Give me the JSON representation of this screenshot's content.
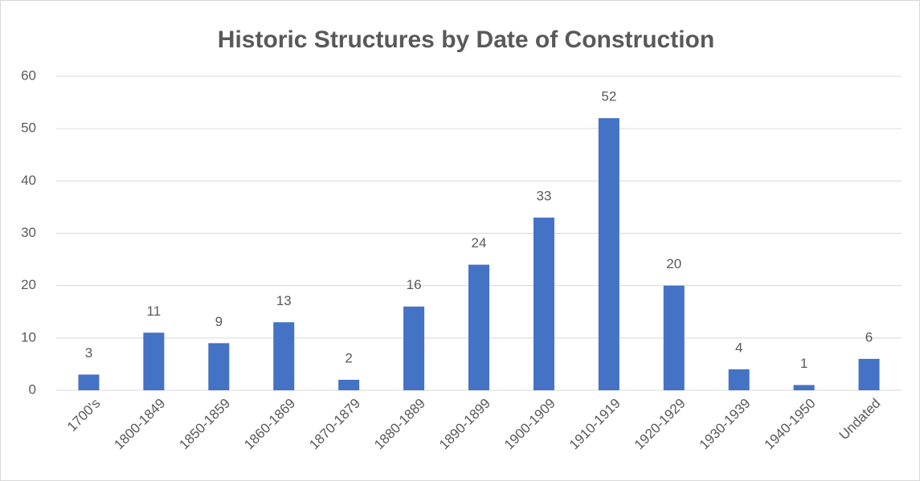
{
  "chart_data": {
    "type": "bar",
    "title": "Historic Structures by Date of Construction",
    "categories": [
      "1700's",
      "1800-1849",
      "1850-1859",
      "1860-1869",
      "1870-1879",
      "1880-1889",
      "1890-1899",
      "1900-1909",
      "1910-1919",
      "1920-1929",
      "1930-1939",
      "1940-1950",
      "Undated"
    ],
    "values": [
      3,
      11,
      9,
      13,
      2,
      16,
      24,
      33,
      52,
      20,
      4,
      1,
      6
    ],
    "color": "#4472c4",
    "ylim": [
      0,
      60
    ],
    "yticks": [
      0,
      10,
      20,
      30,
      40,
      50,
      60
    ],
    "grid": true
  }
}
